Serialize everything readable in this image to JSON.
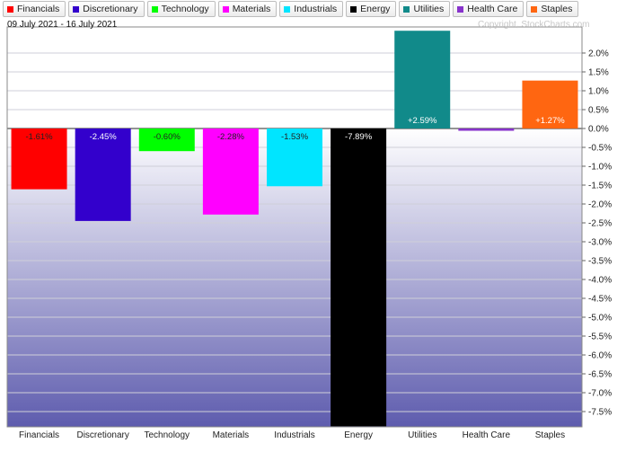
{
  "date_range": "09 July 2021 - 16 July 2021",
  "copyright": "Copyright, StockCharts.com",
  "chart_data": {
    "type": "bar",
    "categories": [
      "Financials",
      "Discretionary",
      "Technology",
      "Materials",
      "Industrials",
      "Energy",
      "Utilities",
      "Health Care",
      "Staples"
    ],
    "values": [
      -1.61,
      -2.45,
      -0.6,
      -2.28,
      -1.53,
      -7.89,
      2.59,
      -0.06,
      1.27
    ],
    "data_labels": [
      "-1.61%",
      "-2.45%",
      "-0.60%",
      "-2.28%",
      "-1.53%",
      "-7.89%",
      "+2.59%",
      "",
      "+1.27%"
    ],
    "colors": [
      "#ff0000",
      "#3300cc",
      "#00ff00",
      "#ff00ff",
      "#00e5ff",
      "#000000",
      "#118a8a",
      "#8833cc",
      "#ff6611"
    ],
    "legend": [
      "Financials",
      "Discretionary",
      "Technology",
      "Materials",
      "Industrials",
      "Energy",
      "Utilities",
      "Health Care",
      "Staples"
    ],
    "ylim": [
      -7.9,
      2.5
    ],
    "yticks": [
      2.0,
      1.5,
      1.0,
      0.5,
      0.0,
      -0.5,
      -1.0,
      -1.5,
      -2.0,
      -2.5,
      -3.0,
      -3.5,
      -4.0,
      -4.5,
      -5.0,
      -5.5,
      -6.0,
      -6.5,
      -7.0,
      -7.5
    ],
    "ytick_labels": [
      "2.0%",
      "1.5%",
      "1.0%",
      "0.5%",
      "0.0%",
      "-0.5%",
      "-1.0%",
      "-1.5%",
      "-2.0%",
      "-2.5%",
      "-3.0%",
      "-3.5%",
      "-4.0%",
      "-4.5%",
      "-5.0%",
      "-5.5%",
      "-6.0%",
      "-6.5%",
      "-7.0%",
      "-7.5%"
    ],
    "grid": true,
    "legend_position": "top-left",
    "y_axis_side": "right"
  }
}
